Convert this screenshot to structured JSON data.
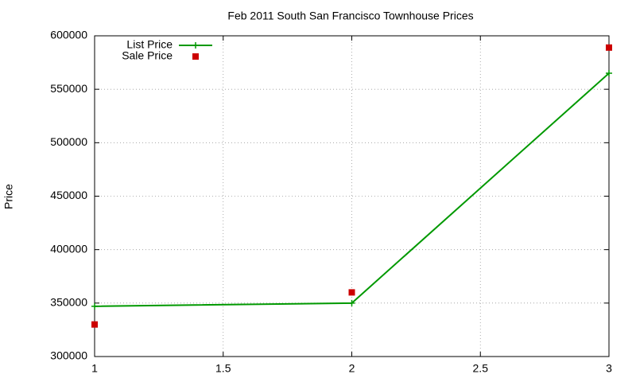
{
  "chart_data": {
    "type": "line",
    "title": "Feb 2011 South San Francisco Townhouse Prices",
    "y_label": "Price",
    "x": [
      1,
      2,
      3
    ],
    "series": [
      {
        "name": "List Price",
        "color": "#009900",
        "style": "linespoints",
        "marker": "plus",
        "values": [
          347000,
          350000,
          565000
        ]
      },
      {
        "name": "Sale Price",
        "color": "#cc0000",
        "style": "points",
        "marker": "square",
        "values": [
          330000,
          360000,
          589000
        ]
      }
    ],
    "xlim": [
      1,
      3
    ],
    "xticks": [
      1,
      1.5,
      2,
      2.5,
      3
    ],
    "ylim": [
      300000,
      600000
    ],
    "yticks": [
      300000,
      350000,
      400000,
      450000,
      500000,
      550000,
      600000
    ],
    "grid": true,
    "legend": "top-left"
  }
}
